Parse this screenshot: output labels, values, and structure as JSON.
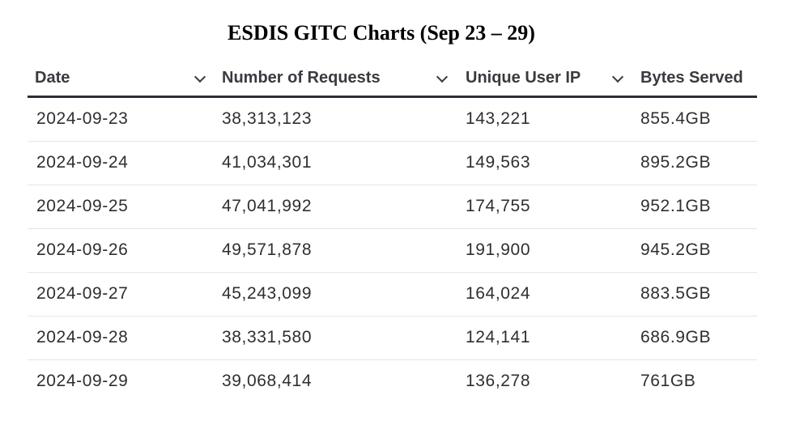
{
  "title": "ESDIS GITC Charts (Sep 23 – 29)",
  "table": {
    "columns": [
      "Date",
      "Number of Requests",
      "Unique User IP",
      "Bytes Served"
    ],
    "rows": [
      [
        "2024-09-23",
        "38,313,123",
        "143,221",
        "855.4GB"
      ],
      [
        "2024-09-24",
        "41,034,301",
        "149,563",
        "895.2GB"
      ],
      [
        "2024-09-25",
        "47,041,992",
        "174,755",
        "952.1GB"
      ],
      [
        "2024-09-26",
        "49,571,878",
        "191,900",
        "945.2GB"
      ],
      [
        "2024-09-27",
        "45,243,099",
        "164,024",
        "883.5GB"
      ],
      [
        "2024-09-28",
        "38,331,580",
        "124,141",
        "686.9GB"
      ],
      [
        "2024-09-29",
        "39,068,414",
        "136,278",
        "761GB"
      ]
    ]
  },
  "icons": {
    "sort": "chevron-down-icon"
  },
  "colors": {
    "header_rule": "#2e2e35",
    "row_divider": "#e6e6ea",
    "text": "#2f2f33"
  }
}
